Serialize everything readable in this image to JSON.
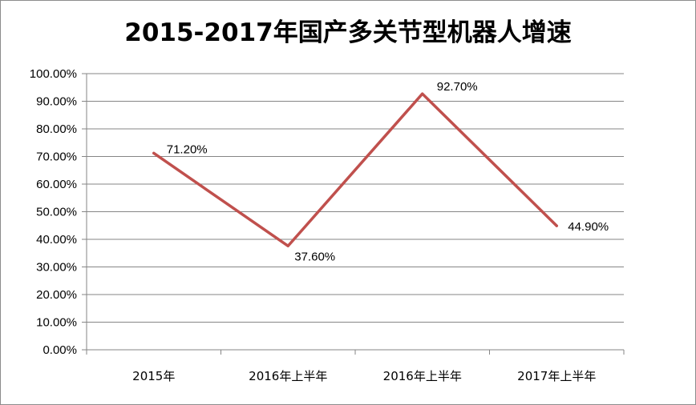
{
  "chart_data": {
    "type": "line",
    "title": "2015-2017年国产多关节型机器人增速",
    "categories": [
      "2015年",
      "2016年上半年",
      "2016年上半年",
      "2017年上半年"
    ],
    "series": [
      {
        "values": [
          71.2,
          37.6,
          92.7,
          44.9
        ]
      }
    ],
    "data_labels": [
      "71.20%",
      "37.60%",
      "92.70%",
      "44.90%"
    ],
    "y_ticks": [
      "0.00%",
      "10.00%",
      "20.00%",
      "30.00%",
      "40.00%",
      "50.00%",
      "60.00%",
      "70.00%",
      "80.00%",
      "90.00%",
      "100.00%"
    ],
    "ylim": [
      0,
      100
    ],
    "grid": true,
    "legend": "none",
    "colors": {
      "line": "#c0504d",
      "grid": "#868686",
      "axis": "#868686"
    }
  }
}
